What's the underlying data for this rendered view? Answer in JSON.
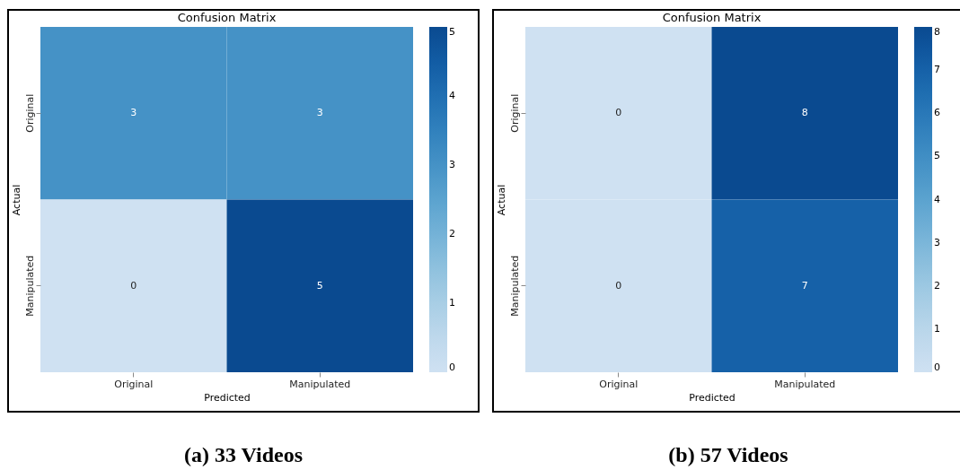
{
  "chart_data": [
    {
      "type": "heatmap",
      "title": "Confusion Matrix",
      "xlabel": "Predicted",
      "ylabel": "Actual",
      "categories": [
        "Original",
        "Manipulated"
      ],
      "y_categories": [
        "Original",
        "Manipulated"
      ],
      "cells": [
        [
          3,
          3
        ],
        [
          0,
          5
        ]
      ],
      "clim": [
        0,
        5
      ],
      "cticks": [
        0,
        1,
        2,
        3,
        4,
        5
      ],
      "data_labels": true,
      "annotations": [
        "(a) 33 Videos"
      ]
    },
    {
      "type": "heatmap",
      "title": "Confusion Matrix",
      "xlabel": "Predicted",
      "ylabel": "Actual",
      "categories": [
        "Original",
        "Manipulated"
      ],
      "y_categories": [
        "Original",
        "Manipulated"
      ],
      "cells": [
        [
          0,
          8
        ],
        [
          0,
          7
        ]
      ],
      "clim": [
        0,
        8
      ],
      "cticks": [
        0,
        1,
        2,
        3,
        4,
        5,
        6,
        7,
        8
      ],
      "data_labels": true,
      "annotations": [
        "(b) 57 Videos"
      ]
    }
  ]
}
